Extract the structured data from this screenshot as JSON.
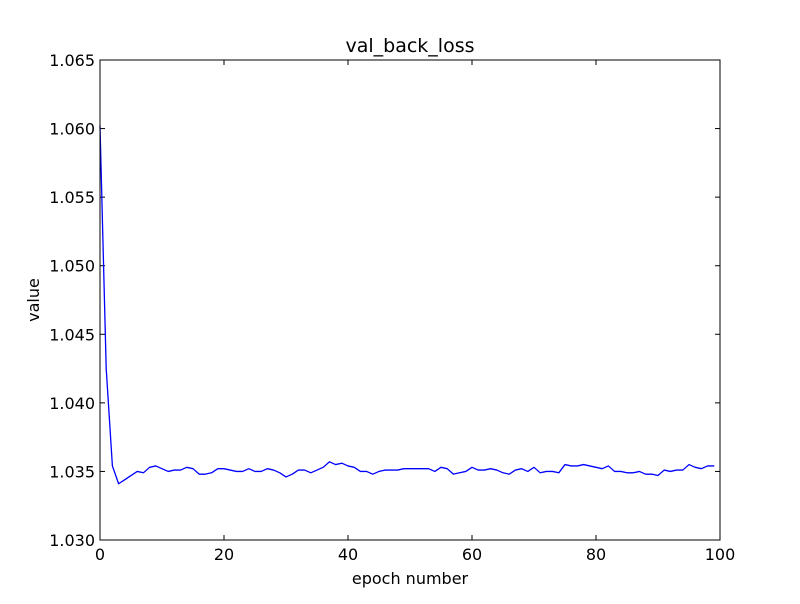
{
  "chart_data": {
    "type": "line",
    "title": "val_back_loss",
    "xlabel": "epoch number",
    "ylabel": "value",
    "xlim": [
      0,
      100
    ],
    "ylim": [
      1.03,
      1.065
    ],
    "x_ticks": [
      0,
      20,
      40,
      60,
      80,
      100
    ],
    "x_tick_labels": [
      "0",
      "20",
      "40",
      "60",
      "80",
      "100"
    ],
    "y_ticks": [
      1.03,
      1.035,
      1.04,
      1.045,
      1.05,
      1.055,
      1.06,
      1.065
    ],
    "y_tick_labels": [
      "1.030",
      "1.035",
      "1.040",
      "1.045",
      "1.050",
      "1.055",
      "1.060",
      "1.065"
    ],
    "grid": false,
    "legend": "none",
    "colors": {
      "line": "#0000ff",
      "axes": "#000000",
      "background": "#ffffff"
    },
    "series": [
      {
        "x": [
          0,
          1,
          2,
          3,
          4,
          5,
          6,
          7,
          8,
          9,
          10,
          11,
          12,
          13,
          14,
          15,
          16,
          17,
          18,
          19,
          20,
          21,
          22,
          23,
          24,
          25,
          26,
          27,
          28,
          29,
          30,
          31,
          32,
          33,
          34,
          35,
          36,
          37,
          38,
          39,
          40,
          41,
          42,
          43,
          44,
          45,
          46,
          47,
          48,
          49,
          50,
          51,
          52,
          53,
          54,
          55,
          56,
          57,
          58,
          59,
          60,
          61,
          62,
          63,
          64,
          65,
          66,
          67,
          68,
          69,
          70,
          71,
          72,
          73,
          74,
          75,
          76,
          77,
          78,
          79,
          80,
          81,
          82,
          83,
          84,
          85,
          86,
          87,
          88,
          89,
          90,
          91,
          92,
          93,
          94,
          95,
          96,
          97,
          98,
          99
        ],
        "values": [
          1.0602,
          1.0425,
          1.0354,
          1.0341,
          1.0344,
          1.0347,
          1.035,
          1.0349,
          1.0353,
          1.0354,
          1.0352,
          1.035,
          1.0351,
          1.0351,
          1.0353,
          1.0352,
          1.0348,
          1.0348,
          1.0349,
          1.0352,
          1.0352,
          1.0351,
          1.035,
          1.035,
          1.0352,
          1.035,
          1.035,
          1.0352,
          1.0351,
          1.0349,
          1.0346,
          1.0348,
          1.0351,
          1.0351,
          1.0349,
          1.0351,
          1.0353,
          1.0357,
          1.0355,
          1.0356,
          1.0354,
          1.0353,
          1.035,
          1.035,
          1.0348,
          1.035,
          1.0351,
          1.0351,
          1.0351,
          1.0352,
          1.0352,
          1.0352,
          1.0352,
          1.0352,
          1.035,
          1.0353,
          1.0352,
          1.0348,
          1.0349,
          1.035,
          1.0353,
          1.0351,
          1.0351,
          1.0352,
          1.0351,
          1.0349,
          1.0348,
          1.0351,
          1.0352,
          1.035,
          1.0353,
          1.0349,
          1.035,
          1.035,
          1.0349,
          1.0355,
          1.0354,
          1.0354,
          1.0355,
          1.0354,
          1.0353,
          1.0352,
          1.0354,
          1.035,
          1.035,
          1.0349,
          1.0349,
          1.035,
          1.0348,
          1.0348,
          1.0347,
          1.0351,
          1.035,
          1.0351,
          1.0351,
          1.0355,
          1.0353,
          1.0352,
          1.0354,
          1.0354
        ]
      }
    ]
  }
}
